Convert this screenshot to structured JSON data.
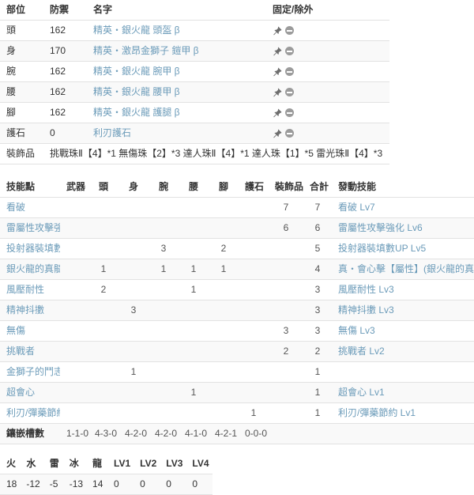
{
  "colors": {
    "link": "#6b9bb9",
    "text": "#333333",
    "count_text": "#555555",
    "stripe": "#f9f9f9",
    "border": "#e2e2e2",
    "icon_grey": "#6e6e6e",
    "minus_grey": "#9b9b9b"
  },
  "equipment_table": {
    "headers": {
      "part": "部位",
      "defense": "防禦",
      "name": "名字",
      "fix": "固定/除外"
    },
    "icons": {
      "pin": "pin-icon",
      "exclude": "minus-circle-icon"
    },
    "rows": [
      {
        "part": "頭",
        "defense": "162",
        "name": "精英・銀火龍 頭盔 β"
      },
      {
        "part": "身",
        "defense": "170",
        "name": "精英・激昂金獅子 鎧甲 β"
      },
      {
        "part": "腕",
        "defense": "162",
        "name": "精英・銀火龍 腕甲 β"
      },
      {
        "part": "腰",
        "defense": "162",
        "name": "精英・銀火龍 腰甲 β"
      },
      {
        "part": "腳",
        "defense": "162",
        "name": "精英・銀火龍 護腿 β"
      },
      {
        "part": "護石",
        "defense": "0",
        "name": "利刃護石"
      }
    ],
    "decorations_row": {
      "label": "裝飾品",
      "value": "挑戰珠Ⅱ【4】*1 無傷珠【2】*3 達人珠Ⅱ【4】*1 達人珠【1】*5 雷光珠Ⅱ【4】*3"
    }
  },
  "skills_table": {
    "headers": [
      "技能點",
      "武器",
      "頭",
      "身",
      "腕",
      "腰",
      "腳",
      "護石",
      "裝飾品",
      "合計",
      "發動技能"
    ],
    "rows": [
      {
        "name": "看破",
        "weapon": "",
        "head": "",
        "chest": "",
        "arm": "",
        "waist": "",
        "leg": "",
        "charm": "",
        "deco": "7",
        "total": "7",
        "active": "看破 Lv7"
      },
      {
        "name": "雷屬性攻擊強化",
        "weapon": "",
        "head": "",
        "chest": "",
        "arm": "",
        "waist": "",
        "leg": "",
        "charm": "",
        "deco": "6",
        "total": "6",
        "active": "雷屬性攻擊強化 Lv6"
      },
      {
        "name": "投射器裝填數UP",
        "weapon": "",
        "head": "",
        "chest": "",
        "arm": "3",
        "waist": "",
        "leg": "2",
        "charm": "",
        "deco": "",
        "total": "5",
        "active": "投射器裝填數UP Lv5"
      },
      {
        "name": "銀火龍的真髓",
        "weapon": "",
        "head": "1",
        "chest": "",
        "arm": "1",
        "waist": "1",
        "leg": "1",
        "charm": "",
        "deco": "",
        "total": "4",
        "active": "真・會心擊【屬性】(銀火龍的真髓)"
      },
      {
        "name": "風壓耐性",
        "weapon": "",
        "head": "2",
        "chest": "",
        "arm": "",
        "waist": "1",
        "leg": "",
        "charm": "",
        "deco": "",
        "total": "3",
        "active": "風壓耐性 Lv3"
      },
      {
        "name": "精神抖擻",
        "weapon": "",
        "head": "",
        "chest": "3",
        "arm": "",
        "waist": "",
        "leg": "",
        "charm": "",
        "deco": "",
        "total": "3",
        "active": "精神抖擻 Lv3"
      },
      {
        "name": "無傷",
        "weapon": "",
        "head": "",
        "chest": "",
        "arm": "",
        "waist": "",
        "leg": "",
        "charm": "",
        "deco": "3",
        "total": "3",
        "active": "無傷 Lv3"
      },
      {
        "name": "挑戰者",
        "weapon": "",
        "head": "",
        "chest": "",
        "arm": "",
        "waist": "",
        "leg": "",
        "charm": "",
        "deco": "2",
        "total": "2",
        "active": "挑戰者 Lv2"
      },
      {
        "name": "金獅子的鬥志",
        "weapon": "",
        "head": "",
        "chest": "1",
        "arm": "",
        "waist": "",
        "leg": "",
        "charm": "",
        "deco": "",
        "total": "1",
        "active": ""
      },
      {
        "name": "超會心",
        "weapon": "",
        "head": "",
        "chest": "",
        "arm": "",
        "waist": "1",
        "leg": "",
        "charm": "",
        "deco": "",
        "total": "1",
        "active": "超會心 Lv1"
      },
      {
        "name": "利刃/彈藥節約",
        "weapon": "",
        "head": "",
        "chest": "",
        "arm": "",
        "waist": "",
        "leg": "",
        "charm": "1",
        "deco": "",
        "total": "1",
        "active": "利刃/彈藥節約 Lv1"
      }
    ],
    "slots_row": {
      "label": "鑲嵌槽數",
      "weapon": "1-1-0",
      "head": "4-3-0",
      "chest": "4-2-0",
      "arm": "4-2-0",
      "waist": "4-1-0",
      "leg": "4-2-1",
      "charm": "0-0-0",
      "deco": "",
      "total": "",
      "active": ""
    }
  },
  "resist_table": {
    "headers": [
      "火",
      "水",
      "雷",
      "冰",
      "龍",
      "LV1",
      "LV2",
      "LV3",
      "LV4"
    ],
    "values": [
      "18",
      "-12",
      "-5",
      "-13",
      "14",
      "0",
      "0",
      "0",
      "0"
    ]
  }
}
